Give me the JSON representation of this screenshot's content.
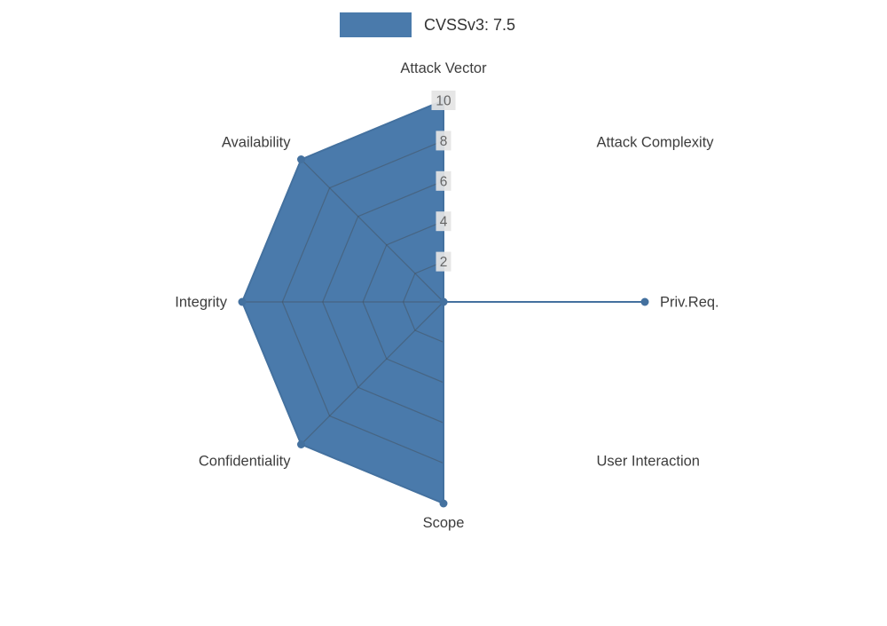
{
  "chart_data": {
    "type": "radar",
    "legend": "CVSSv3: 7.5",
    "legend_position": "top-center",
    "categories": [
      "Attack Vector",
      "Attack Complexity",
      "Priv.Req.",
      "User Interaction",
      "Scope",
      "Confidentiality",
      "Integrity",
      "Availability"
    ],
    "series": [
      {
        "name": "CVSSv3: 7.5",
        "values": [
          10,
          0,
          10,
          0,
          10,
          10,
          10,
          10
        ]
      }
    ],
    "ticks": [
      2,
      4,
      6,
      8,
      10
    ],
    "rmax": 10,
    "grid": "spider-web rings and spokes, visible only inside filled polygon",
    "colors": {
      "fill": "#4a7aab",
      "edge": "#44719f",
      "grid": "#44505c",
      "tick_box": "#e4e4e4",
      "tick_label": "#666666",
      "axis_label": "#3d3d3d",
      "legend_label": "#333333"
    }
  }
}
